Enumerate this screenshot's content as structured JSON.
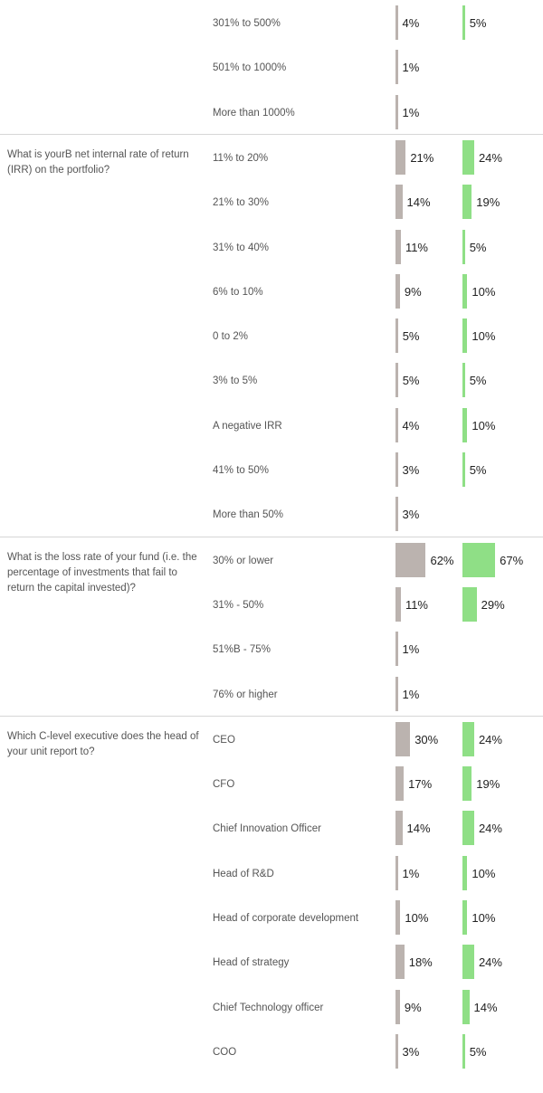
{
  "colors": {
    "series_a": "#bbb3af",
    "series_b": "#8fdf86"
  },
  "chart_data": {
    "type": "bar",
    "orientation": "horizontal",
    "groups": [
      {
        "question": "",
        "rows": [
          {
            "label": "301% to 500%",
            "a": 4,
            "a_label": "4%",
            "b": 5,
            "b_label": "5%"
          },
          {
            "label": "501% to 1000%",
            "a": 1,
            "a_label": "1%",
            "b": null,
            "b_label": ""
          },
          {
            "label": "More than 1000%",
            "a": 1,
            "a_label": "1%",
            "b": null,
            "b_label": ""
          }
        ]
      },
      {
        "question": "What is yourB net internal rate of return (IRR) on the portfolio?",
        "rows": [
          {
            "label": "11% to 20%",
            "a": 21,
            "a_label": "21%",
            "b": 24,
            "b_label": "24%"
          },
          {
            "label": "21% to 30%",
            "a": 14,
            "a_label": "14%",
            "b": 19,
            "b_label": "19%"
          },
          {
            "label": "31% to 40%",
            "a": 11,
            "a_label": "11%",
            "b": 5,
            "b_label": "5%"
          },
          {
            "label": "6% to 10%",
            "a": 9,
            "a_label": "9%",
            "b": 10,
            "b_label": "10%"
          },
          {
            "label": "0 to 2%",
            "a": 5,
            "a_label": "5%",
            "b": 10,
            "b_label": "10%"
          },
          {
            "label": "3% to 5%",
            "a": 5,
            "a_label": "5%",
            "b": 5,
            "b_label": "5%"
          },
          {
            "label": "A negative IRR",
            "a": 4,
            "a_label": "4%",
            "b": 10,
            "b_label": "10%"
          },
          {
            "label": "41% to 50%",
            "a": 3,
            "a_label": "3%",
            "b": 5,
            "b_label": "5%"
          },
          {
            "label": "More than 50%",
            "a": 3,
            "a_label": "3%",
            "b": null,
            "b_label": ""
          }
        ]
      },
      {
        "question": "What is the loss rate of your fund (i.e. the percentage of investments that fail to return the capital invested)?",
        "rows": [
          {
            "label": "30% or lower",
            "a": 62,
            "a_label": "62%",
            "b": 67,
            "b_label": "67%"
          },
          {
            "label": "31% - 50%",
            "a": 11,
            "a_label": "11%",
            "b": 29,
            "b_label": "29%"
          },
          {
            "label": "51%B - 75%",
            "a": 1,
            "a_label": "1%",
            "b": null,
            "b_label": ""
          },
          {
            "label": "76% or higher",
            "a": 1,
            "a_label": "1%",
            "b": null,
            "b_label": ""
          }
        ]
      },
      {
        "question": "Which C-level executive does the head of your unit report to?",
        "rows": [
          {
            "label": "CEO",
            "a": 30,
            "a_label": "30%",
            "b": 24,
            "b_label": "24%"
          },
          {
            "label": "CFO",
            "a": 17,
            "a_label": "17%",
            "b": 19,
            "b_label": "19%"
          },
          {
            "label": "Chief Innovation Officer",
            "a": 14,
            "a_label": "14%",
            "b": 24,
            "b_label": "24%"
          },
          {
            "label": "Head of R&D",
            "a": 1,
            "a_label": "1%",
            "b": 10,
            "b_label": "10%"
          },
          {
            "label": "Head of corporate development",
            "a": 10,
            "a_label": "10%",
            "b": 10,
            "b_label": "10%"
          },
          {
            "label": "Head of strategy",
            "a": 18,
            "a_label": "18%",
            "b": 24,
            "b_label": "24%"
          },
          {
            "label": "Chief Technology officer",
            "a": 9,
            "a_label": "9%",
            "b": 14,
            "b_label": "14%"
          },
          {
            "label": "COO",
            "a": 3,
            "a_label": "3%",
            "b": 5,
            "b_label": "5%"
          }
        ]
      }
    ]
  }
}
